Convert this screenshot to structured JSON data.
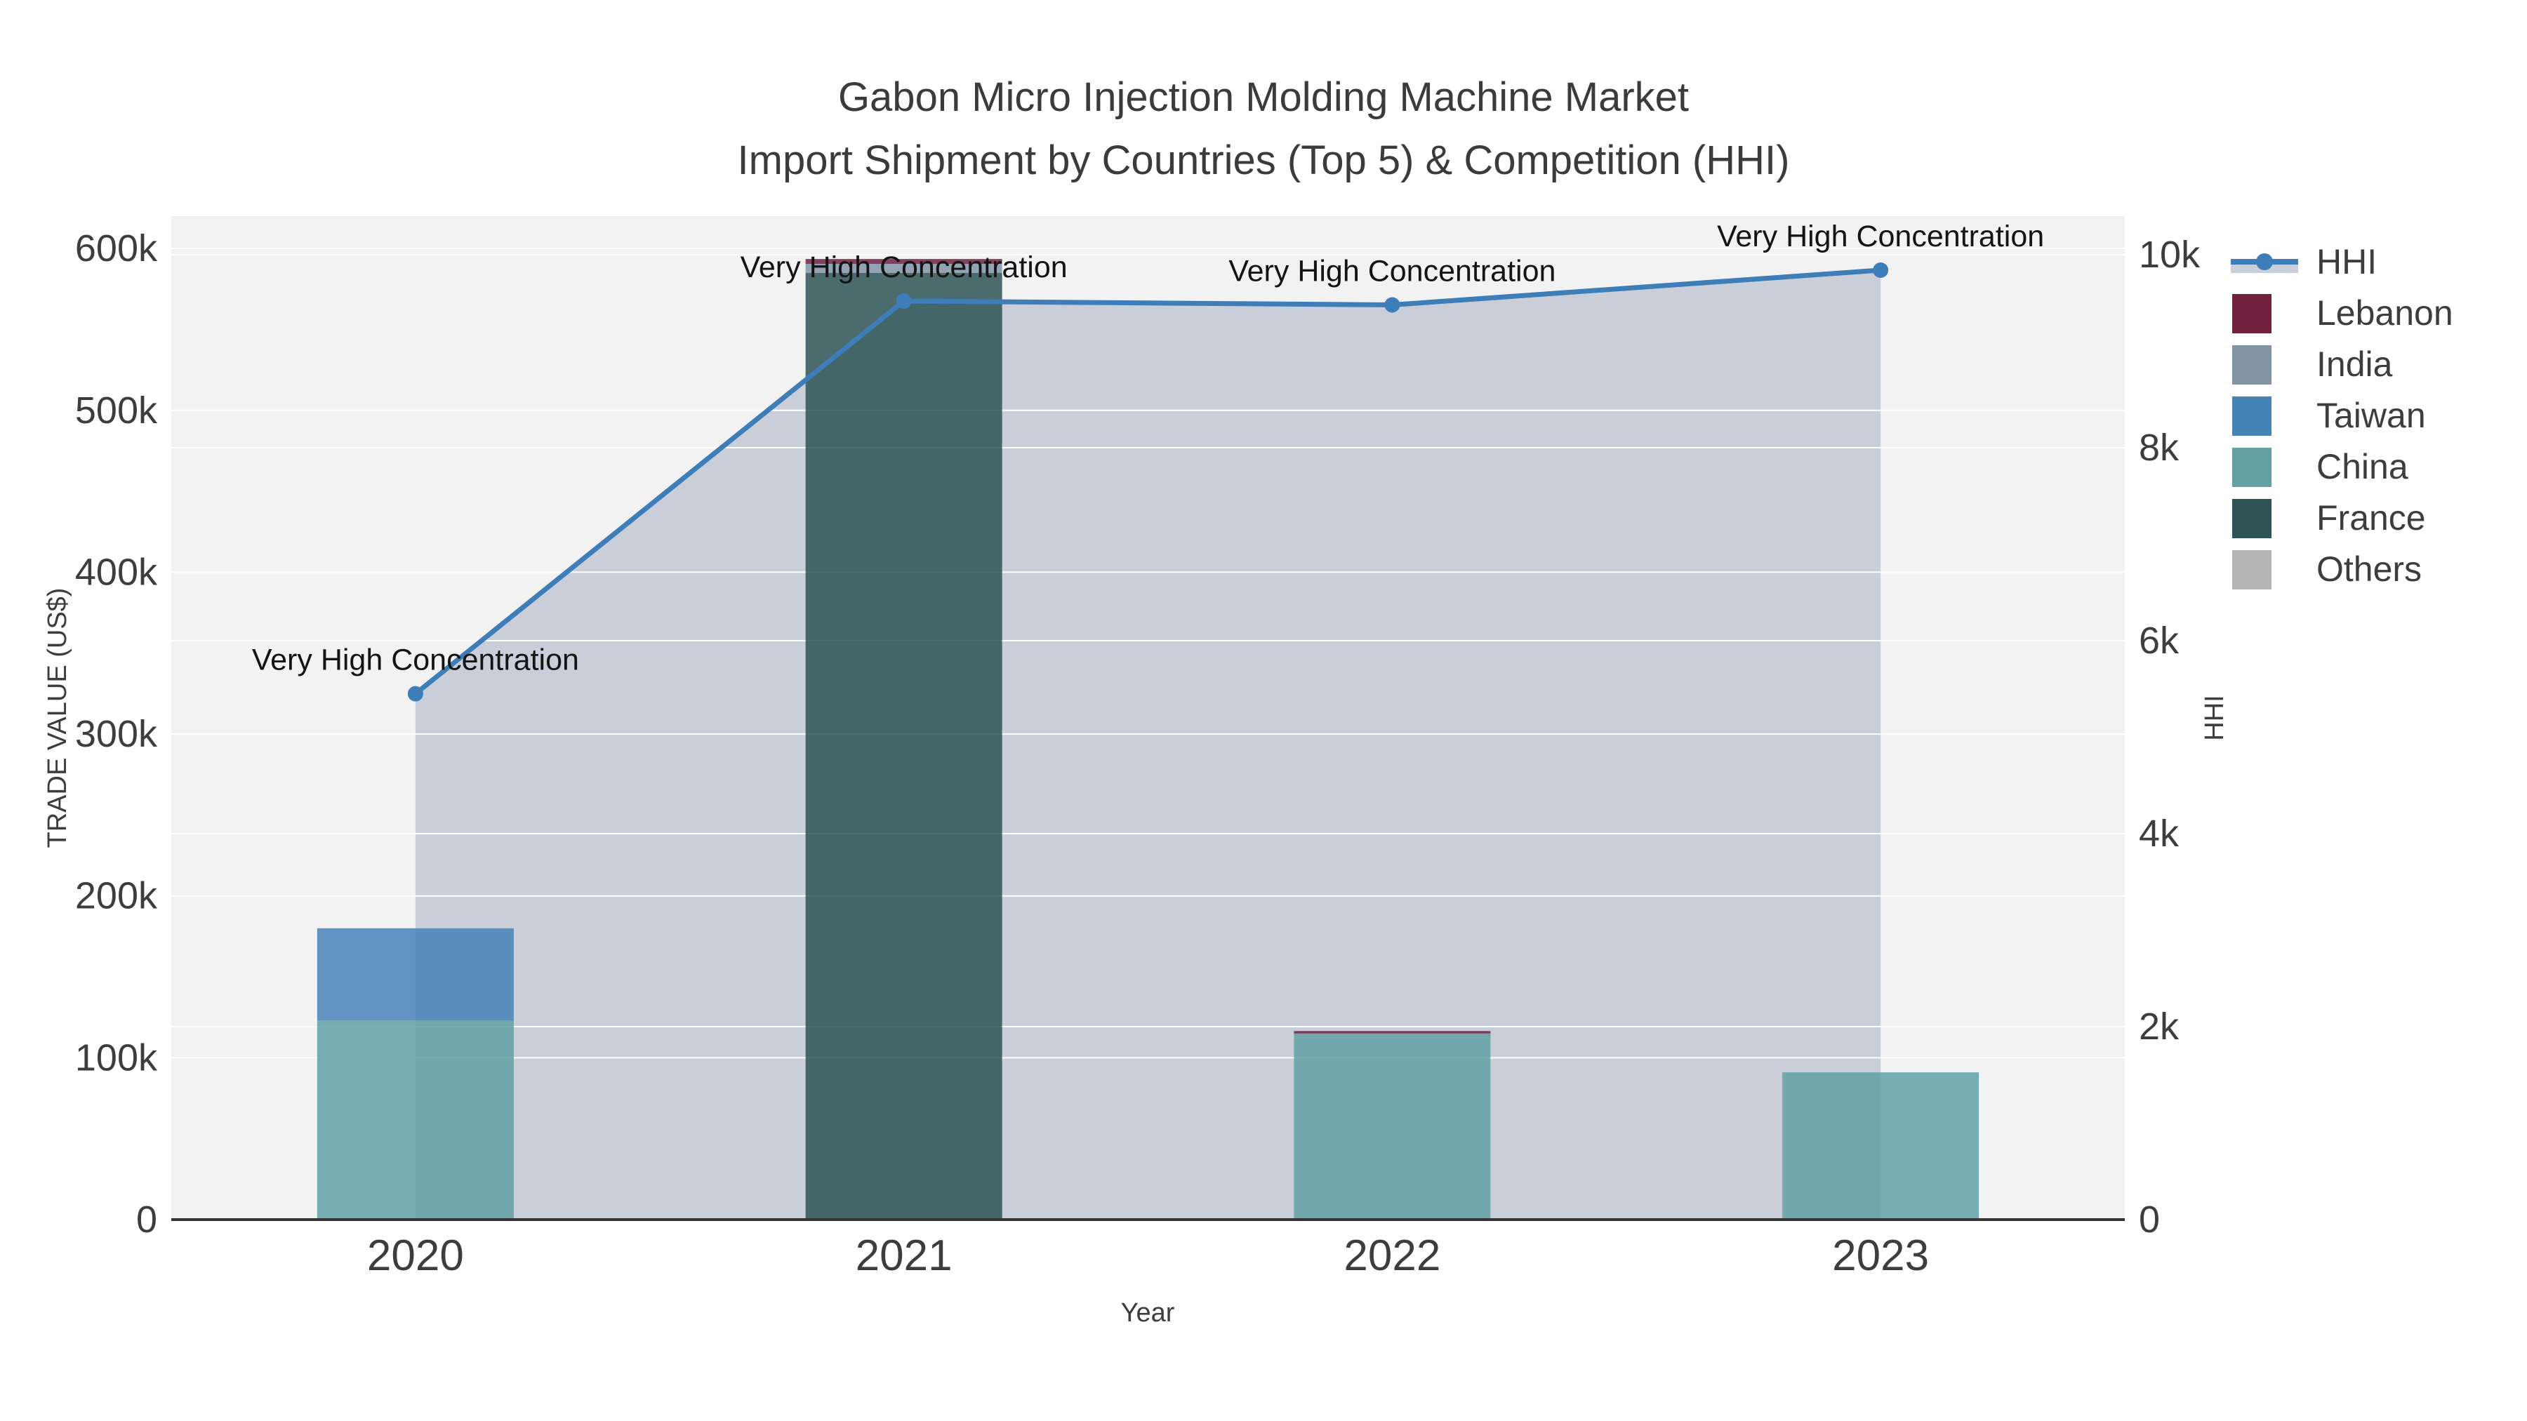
{
  "title": {
    "line1": "Gabon Micro Injection Molding Machine Market",
    "line2": "Import Shipment by Countries (Top 5) & Competition (HHI)"
  },
  "chart_data": {
    "type": "bar+line",
    "categories": [
      "2020",
      "2021",
      "2022",
      "2023"
    ],
    "series": [
      {
        "name": "Lebanon",
        "color": "#71203e",
        "values": [
          0,
          3000,
          1500,
          0
        ]
      },
      {
        "name": "India",
        "color": "#8295a8",
        "values": [
          0,
          5500,
          0,
          0
        ]
      },
      {
        "name": "Taiwan",
        "color": "#4683b7",
        "values": [
          57000,
          0,
          0,
          0
        ]
      },
      {
        "name": "China",
        "color": "#62a1a3",
        "values": [
          123000,
          0,
          115000,
          91000
        ]
      },
      {
        "name": "France",
        "color": "#2e5355",
        "values": [
          0,
          585000,
          0,
          0
        ]
      },
      {
        "name": "Others",
        "color": "#b5b5b5",
        "values": [
          0,
          0,
          0,
          0
        ]
      }
    ],
    "stack_order_bottom_to_top": [
      "Others",
      "France",
      "China",
      "Taiwan",
      "India",
      "Lebanon"
    ],
    "line_series": {
      "name": "HHI",
      "color": "#3d7db8",
      "fill_color": "#c9ced8",
      "values": [
        5450,
        9520,
        9480,
        9840
      ]
    },
    "annotations": [
      "Very High Concentration",
      "Very High Concentration",
      "Very High Concentration",
      "Very High Concentration"
    ],
    "x_axis": {
      "title": "Year"
    },
    "left_axis": {
      "title": "TRADE VALUE (US$)",
      "tick_values": [
        0,
        100000,
        200000,
        300000,
        400000,
        500000,
        600000
      ],
      "tick_labels": [
        "0",
        "100k",
        "200k",
        "300k",
        "400k",
        "500k",
        "600k"
      ],
      "max": 620000
    },
    "right_axis": {
      "title": "HHI",
      "tick_values": [
        0,
        2000,
        4000,
        6000,
        8000,
        10000
      ],
      "tick_labels": [
        "0",
        "2k",
        "4k",
        "6k",
        "8k",
        "10k"
      ],
      "max": 10400
    },
    "legend_position": "top-right"
  },
  "legend": {
    "items": [
      {
        "label": "HHI",
        "type": "line",
        "color": "#3d7db8"
      },
      {
        "label": "Lebanon",
        "type": "swatch",
        "color": "#71203e"
      },
      {
        "label": "India",
        "type": "swatch",
        "color": "#8295a8"
      },
      {
        "label": "Taiwan",
        "type": "swatch",
        "color": "#4683b7"
      },
      {
        "label": "China",
        "type": "swatch",
        "color": "#62a1a3"
      },
      {
        "label": "France",
        "type": "swatch",
        "color": "#2e5355"
      },
      {
        "label": "Others",
        "type": "swatch",
        "color": "#b5b5b5"
      }
    ]
  }
}
